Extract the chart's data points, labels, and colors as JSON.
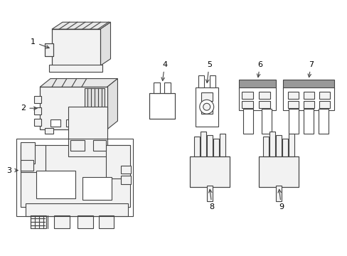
{
  "background_color": "#ffffff",
  "line_color": "#444444",
  "line_width": 0.8,
  "fill_light": "#f2f2f2",
  "fill_white": "#ffffff",
  "fill_dark": "#999999",
  "figsize": [
    4.89,
    3.6
  ],
  "dpi": 100
}
